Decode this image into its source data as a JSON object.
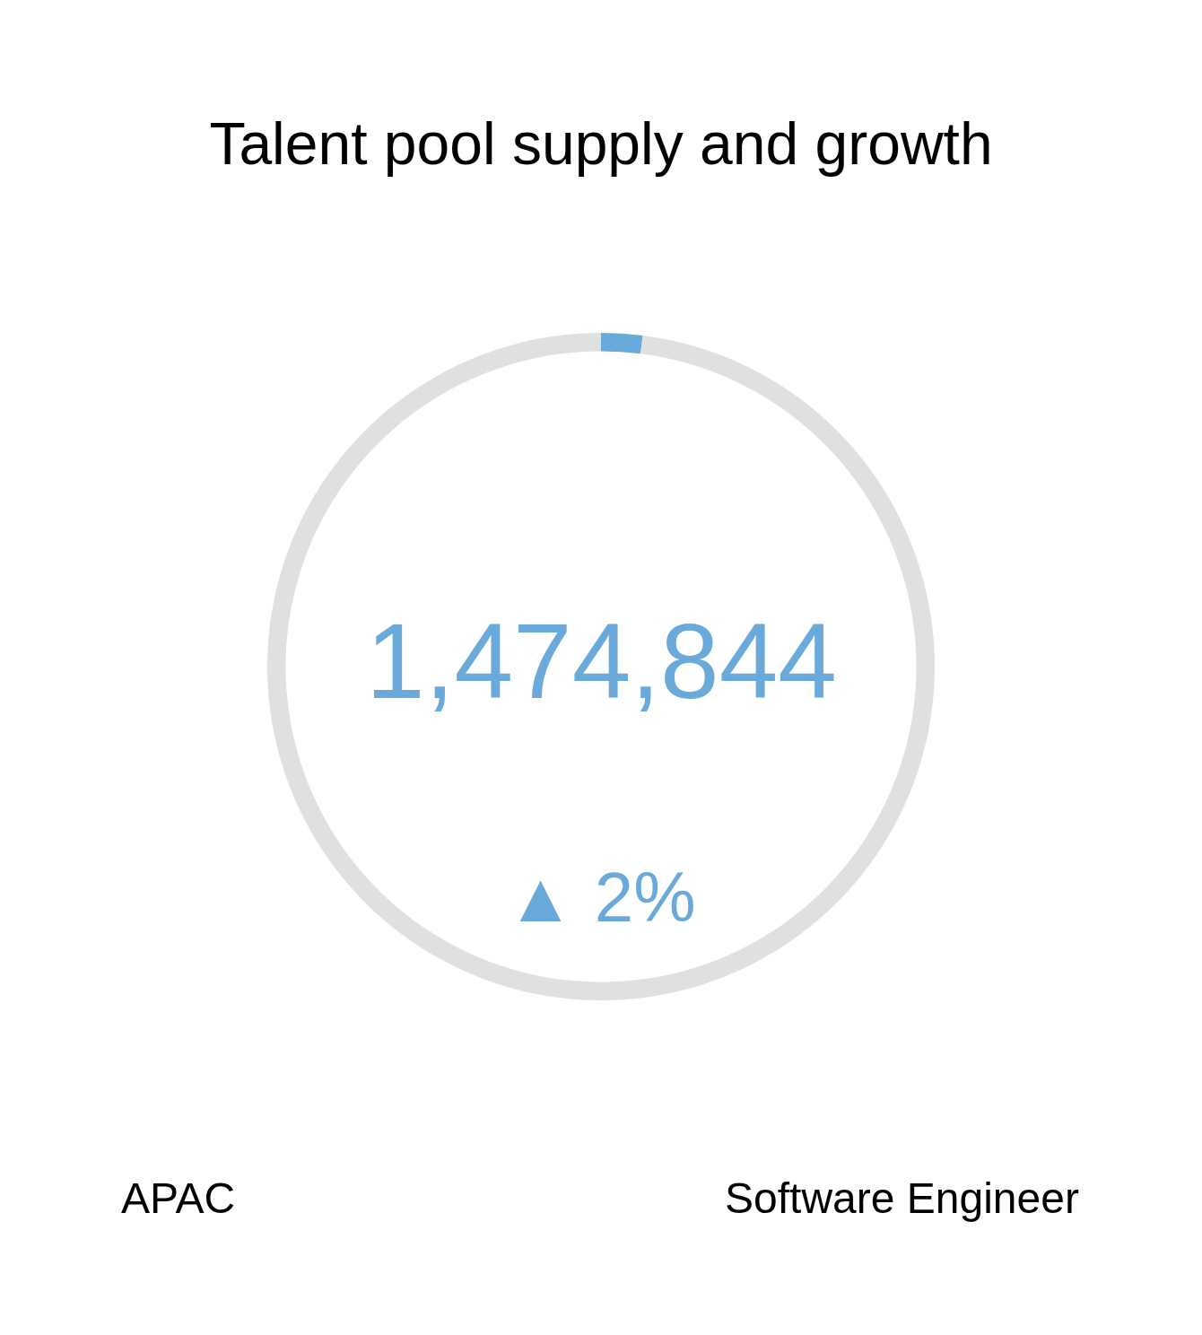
{
  "chart_data": {
    "type": "donut",
    "title": "Talent pool supply and growth",
    "categories": [
      null,
      null
    ],
    "values": [
      2,
      98
    ],
    "colors": [
      "#6aaadb",
      "#e0e0e0"
    ],
    "annotations": [
      "1,474,844",
      "▲ 2%",
      "APAC",
      "Software Engineer"
    ]
  }
}
